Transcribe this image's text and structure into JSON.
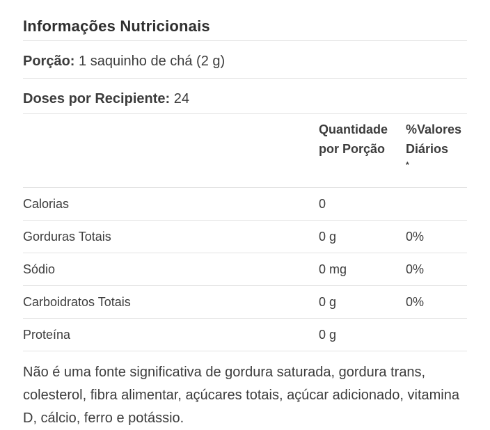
{
  "panel": {
    "title": "Informações Nutricionais",
    "serving": {
      "label": "Porção:",
      "value": "1 saquinho de chá (2 g)"
    },
    "servings_per_container": {
      "label": "Doses por Recipiente:",
      "value": "24"
    },
    "columns": {
      "quantity_line1": "Quantidade",
      "quantity_line2": "por Porção",
      "daily_line1": "%Valores",
      "daily_line2": "Diários",
      "daily_asterisk": "*"
    },
    "rows": [
      {
        "label": "Calorias",
        "quantity": "0",
        "daily": ""
      },
      {
        "label": "Gorduras Totais",
        "quantity": "0 g",
        "daily": "0%"
      },
      {
        "label": "Sódio",
        "quantity": "0 mg",
        "daily": "0%"
      },
      {
        "label": "Carboidratos Totais",
        "quantity": "0 g",
        "daily": "0%"
      },
      {
        "label": "Proteína",
        "quantity": "0 g",
        "daily": ""
      }
    ],
    "footnote": "Não é uma fonte significativa de gordura saturada, gordura trans, colesterol, fibra alimentar, açúcares totais, açúcar adicionado, vitamina D, cálcio, ferro e potássio."
  },
  "colors": {
    "background": "#ffffff",
    "text": "#3c3c3c",
    "title_text": "#2f2f2f",
    "divider": "#e3e3e3"
  }
}
